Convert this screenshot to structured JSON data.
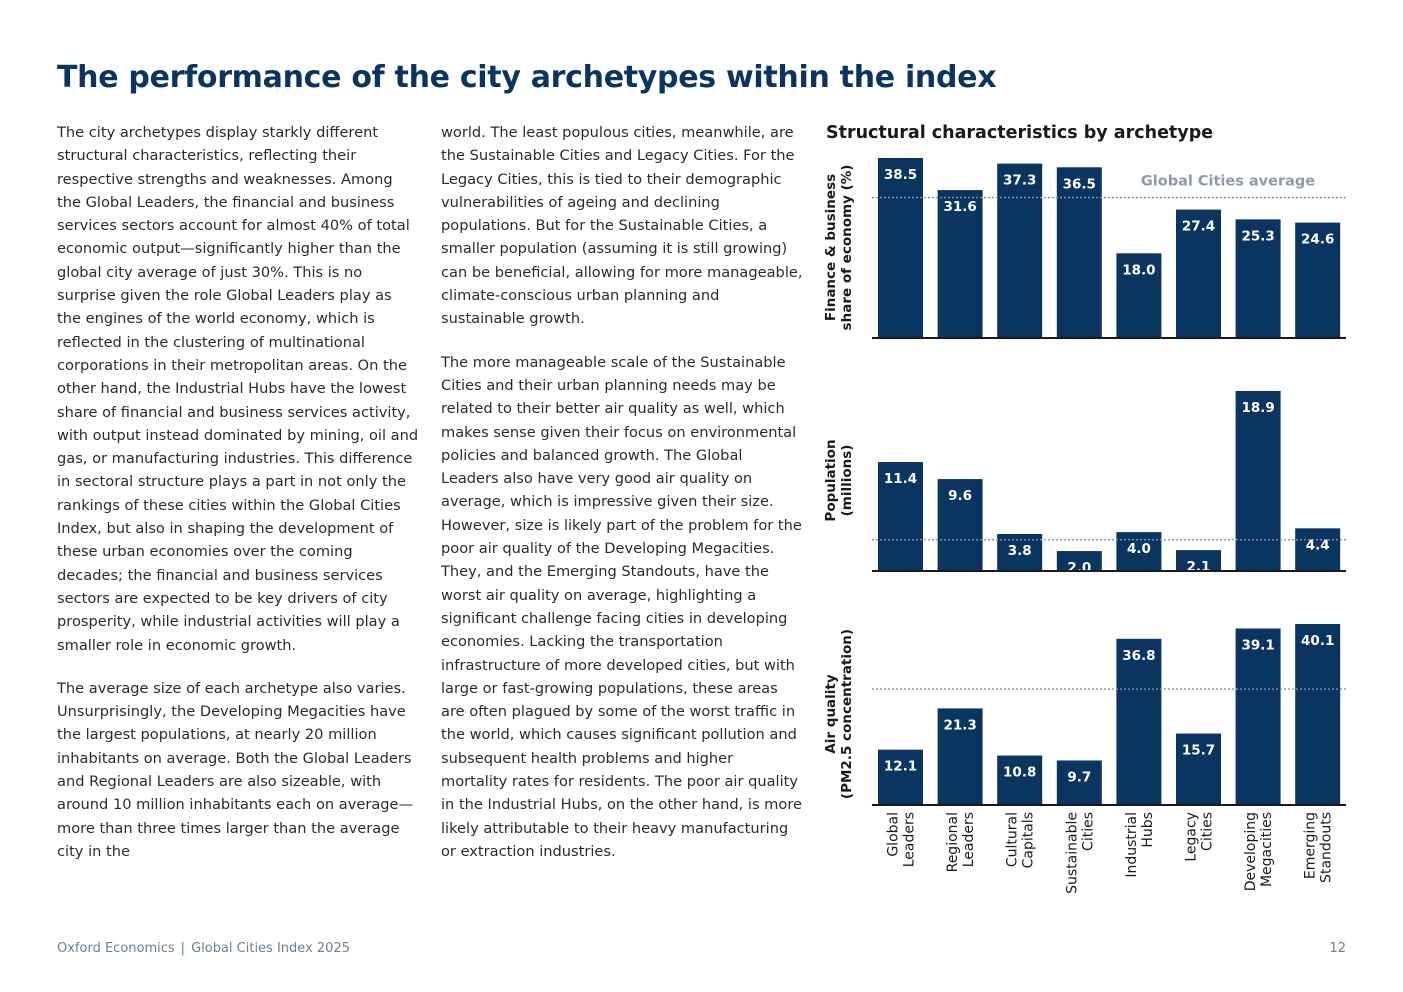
{
  "page": {
    "title": "The performance of the city archetypes within the index",
    "col1": [
      "The city archetypes display starkly different structural characteristics, reflecting their respective strengths and weaknesses. Among the Global Leaders, the financial and business services sectors account for almost 40% of total economic output—significantly higher than the global city average of just 30%. This is no surprise given the role Global Leaders play as the engines of the world economy, which is reflected in the clustering of multinational corporations in their metropolitan areas. On the other hand, the Industrial Hubs have the lowest share of financial and business services activity, with output instead dominated by mining, oil and gas, or manufacturing industries. This difference in sectoral structure plays a part in not only the rankings of these cities within the Global Cities Index, but also in shaping the development of these urban economies over the coming decades; the financial and business services sectors are expected to be key drivers of city prosperity, while industrial activities will play a smaller role in economic growth.",
      "The average size of each archetype also varies. Unsurprisingly, the Developing Megacities have the largest populations, at nearly 20 million inhabitants on average. Both the Global Leaders and Regional Leaders are also sizeable, with around 10 million inhabitants each on average—more than three times larger than the average city in the"
    ],
    "col2": [
      "world. The least populous cities, meanwhile, are the Sustainable Cities and Legacy Cities. For the Legacy Cities, this is tied to their demographic vulnerabilities of ageing and declining populations. But for the Sustainable Cities, a smaller population (assuming it is still growing) can be beneficial, allowing for more manageable, climate-conscious urban planning and sustainable growth.",
      "The more manageable scale of the Sustainable Cities and their urban planning needs may be related to their better air quality as well, which makes sense given their focus on environmental policies and balanced growth. The Global Leaders also have very good air quality on average, which is impressive given their size. However, size is likely part of the problem for the poor air quality of the Developing Megacities. They, and the Emerging Standouts, have the worst air quality on average, highlighting a significant challenge facing cities in developing economies. Lacking the transportation infrastructure of more developed cities, but with large or fast-growing populations, these areas are often plagued by some of the worst traffic in the world, which causes significant pollution and subsequent health problems and higher mortality rates for residents. The poor air quality in the Industrial Hubs, on the other hand, is more likely attributable to their heavy manufacturing or extraction industries."
    ],
    "footer_org": "Oxford Economics",
    "footer_sep": "|",
    "footer_pub": "Global Cities Index 2025",
    "page_number": "12"
  },
  "chart_data": {
    "type": "bar",
    "title": "Structural characteristics by archetype",
    "categories": [
      [
        "Global",
        "Leaders"
      ],
      [
        "Regional",
        "Leaders"
      ],
      [
        "Cultural",
        "Capitals"
      ],
      [
        "Sustainable",
        "Cities"
      ],
      [
        "Industrial",
        "Hubs"
      ],
      [
        "Legacy",
        "Cities"
      ],
      [
        "Developing",
        "Megacities"
      ],
      [
        "Emerging",
        "Standouts"
      ]
    ],
    "reference_label": "Global Cities average",
    "panels": [
      {
        "ylabel": [
          "Finance & business",
          "share of economy (%)"
        ],
        "values": [
          38.5,
          31.6,
          37.3,
          36.5,
          18.0,
          27.4,
          25.3,
          24.6
        ],
        "labels": [
          "38.5",
          "31.6",
          "37.3",
          "36.5",
          "18.0",
          "27.4",
          "25.3",
          "24.6"
        ],
        "ylim": [
          0,
          38.5
        ],
        "reference": 30
      },
      {
        "ylabel": [
          "Population",
          "(millions)"
        ],
        "values": [
          11.4,
          9.6,
          3.8,
          2.0,
          4.0,
          2.1,
          18.9,
          4.4
        ],
        "labels": [
          "11.4",
          "9.6",
          "3.8",
          "2.0",
          "4.0",
          "2.1",
          "18.9",
          "4.4"
        ],
        "ylim": [
          0,
          18.9
        ],
        "reference": 3.2
      },
      {
        "ylabel": [
          "Air quality",
          "(PM2.5 concentration)"
        ],
        "values": [
          12.1,
          21.3,
          10.8,
          9.7,
          36.8,
          15.7,
          39.1,
          40.1
        ],
        "labels": [
          "12.1",
          "21.3",
          "10.8",
          "9.7",
          "36.8",
          "15.7",
          "39.1",
          "40.1"
        ],
        "ylim": [
          0,
          40.1
        ],
        "reference": 25.6
      }
    ],
    "colors": {
      "bar": "#0b3561",
      "label": "#ffffff",
      "reference": "#8a94a0",
      "reference_text": "#8e9aa6"
    }
  }
}
